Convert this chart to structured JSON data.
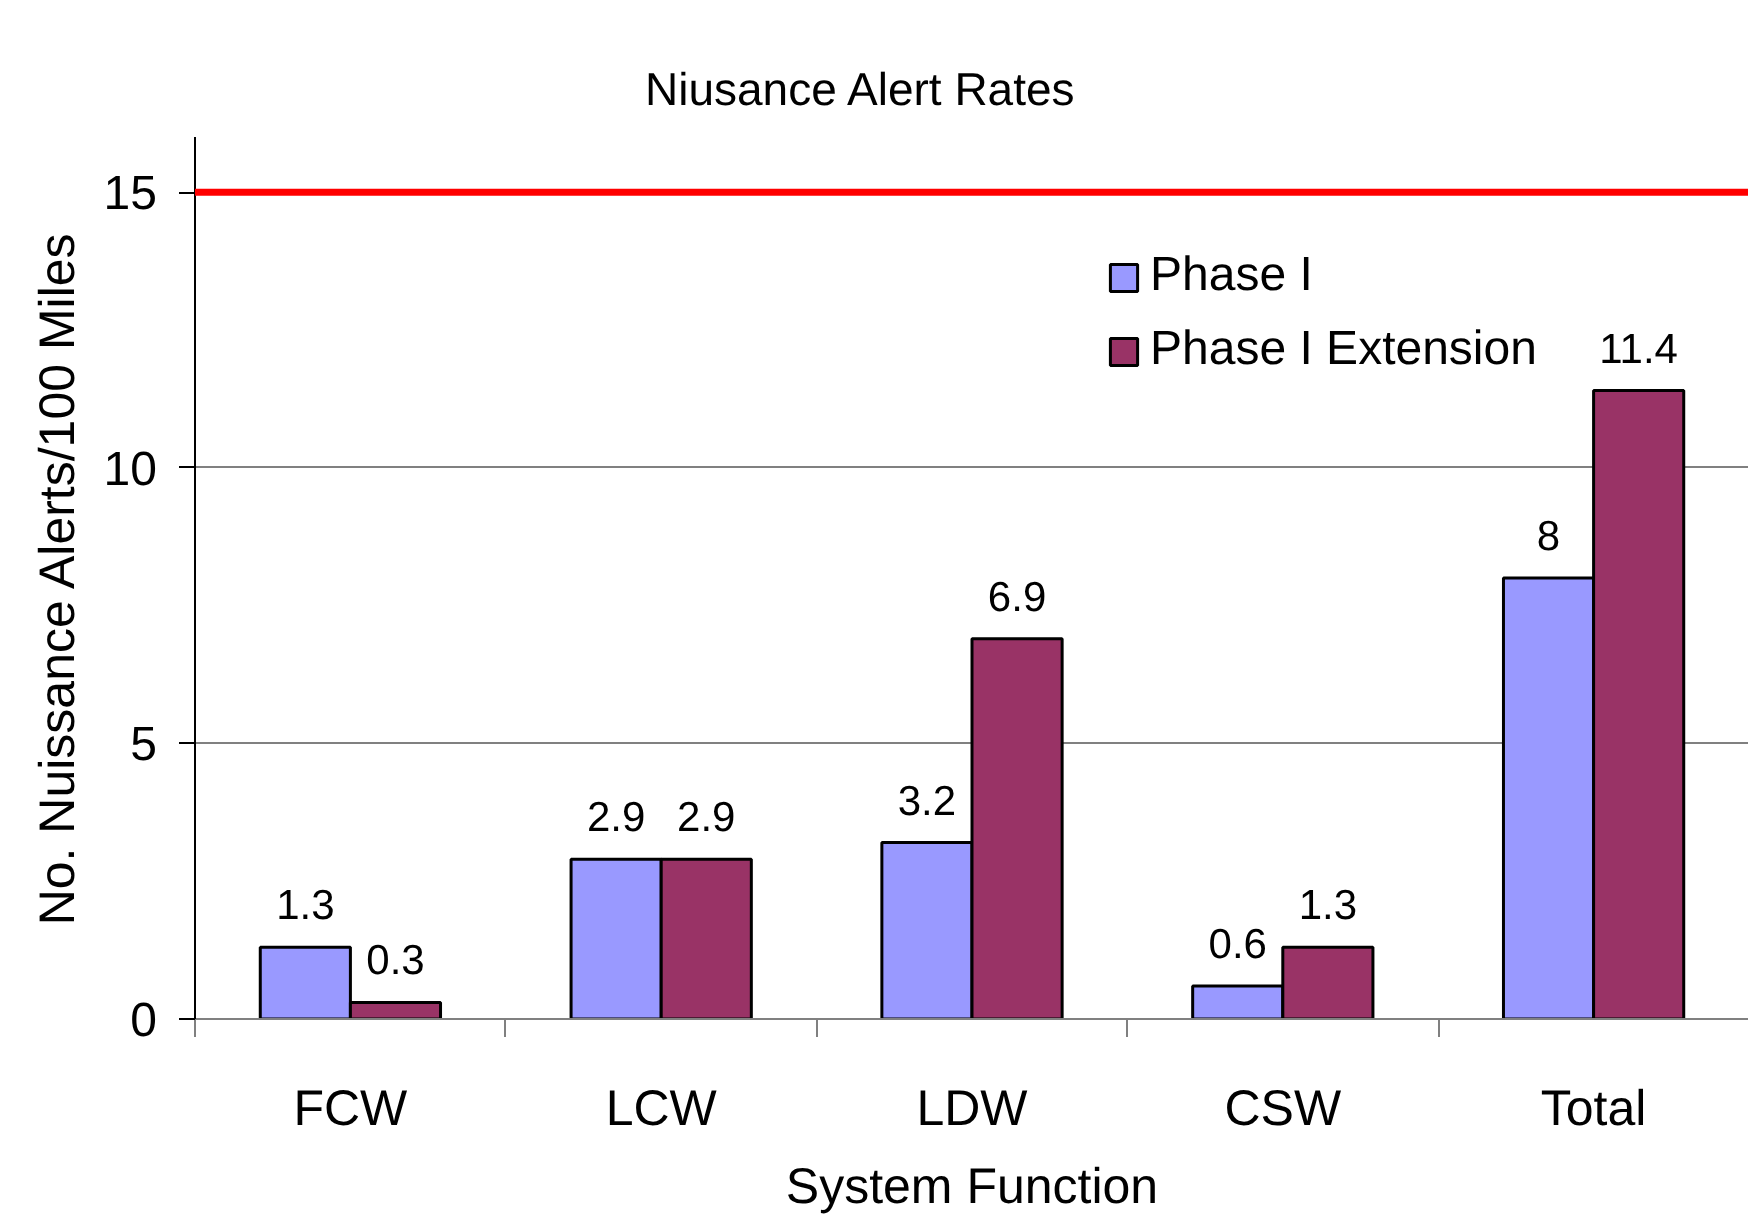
{
  "chart_data": {
    "type": "bar",
    "title": "Niusance Alert Rates",
    "xlabel": "System Function",
    "ylabel": "No. Nuissance Alerts/100 Miles",
    "categories": [
      "FCW",
      "LCW",
      "LDW",
      "CSW",
      "Total"
    ],
    "series": [
      {
        "name": "Phase I",
        "color": "#9999ff",
        "values": [
          1.3,
          2.9,
          3.2,
          0.6,
          8
        ]
      },
      {
        "name": "Phase I Extension",
        "color": "#993366",
        "values": [
          0.3,
          2.9,
          6.9,
          1.3,
          11.4
        ]
      }
    ],
    "ylim": [
      0,
      16
    ],
    "yticks": [
      0,
      5,
      10,
      15
    ],
    "grid": "y",
    "legend": "top right",
    "data_labels": true,
    "ref_lines": [
      {
        "axis": "y",
        "value": 15,
        "color": "#ff0000"
      }
    ]
  }
}
